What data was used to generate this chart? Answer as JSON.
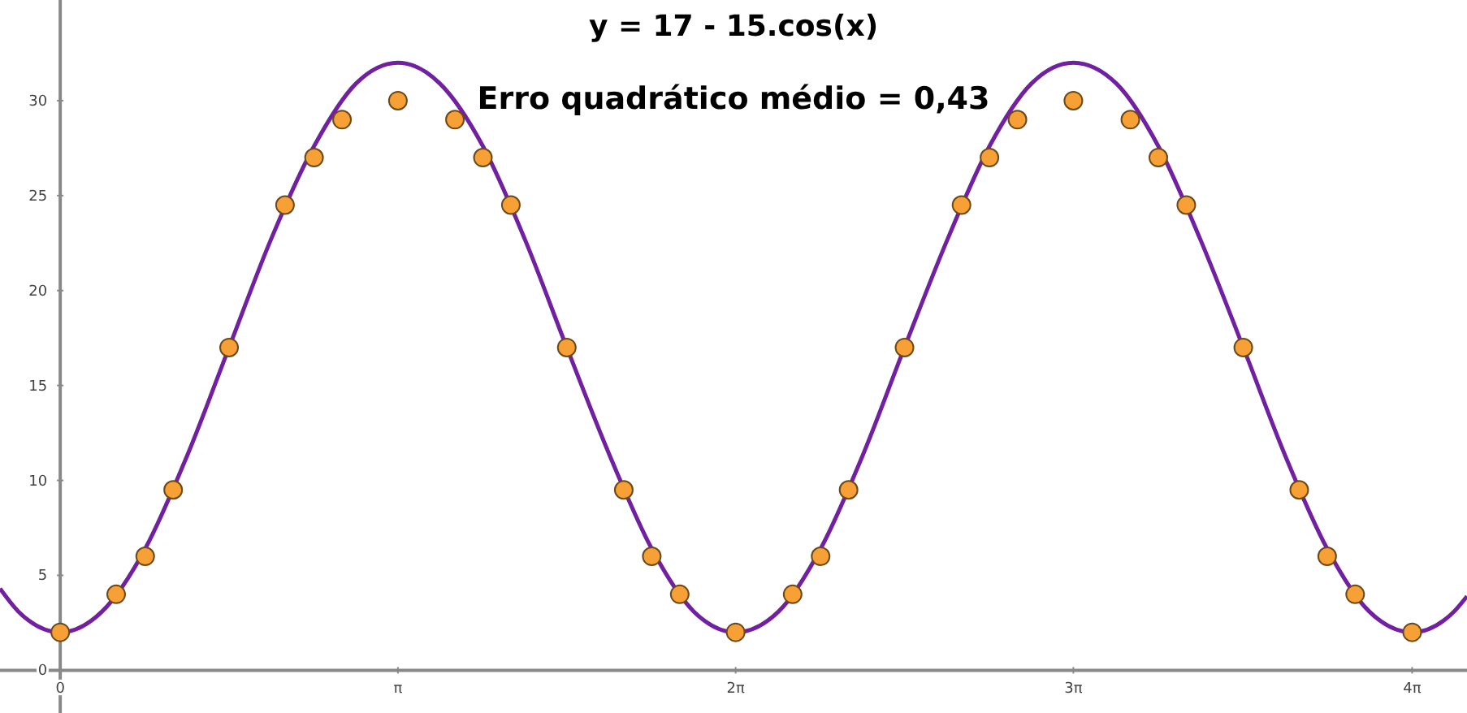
{
  "chart_data": {
    "type": "scatter",
    "title": "y = 17 - 15.cos(x)",
    "subtitle": "Erro quadrático médio = 0,43",
    "xlim": [
      -0.56,
      13.08
    ],
    "ylim": [
      -2.25,
      35.3
    ],
    "xticks": [
      {
        "value": 0,
        "label": "0"
      },
      {
        "value": 3.14,
        "label": "π"
      },
      {
        "value": 6.28,
        "label": "2π"
      },
      {
        "value": 9.42,
        "label": "3π"
      },
      {
        "value": 12.57,
        "label": "4π"
      }
    ],
    "yticks": [
      0,
      5,
      10,
      15,
      20,
      25,
      30
    ],
    "grid": false,
    "marker": "circle",
    "series": [
      {
        "type": "line",
        "marker": "none",
        "color": "#7020a0",
        "line_style": "solid",
        "x": [
          -0.56,
          -0.39,
          0,
          0.39,
          0.79,
          1.18,
          1.57,
          1.96,
          2.36,
          2.75,
          3.14,
          3.53,
          3.93,
          4.32,
          4.71,
          5.11,
          5.5,
          5.89,
          6.28,
          6.68,
          7.07,
          7.46,
          7.85,
          8.25,
          8.64,
          9.03,
          9.42,
          9.82,
          10.21,
          10.6,
          11,
          11.39,
          11.78,
          12.17,
          12.57,
          12.96,
          13.08
        ],
        "values": [
          4.3,
          3.1,
          2,
          3.1,
          6.4,
          11.3,
          17,
          22.7,
          27.6,
          30.9,
          32,
          30.9,
          27.6,
          22.7,
          17,
          11.3,
          6.4,
          3.1,
          2,
          3.1,
          6.4,
          11.3,
          17,
          22.7,
          27.6,
          30.9,
          32,
          30.9,
          27.6,
          22.7,
          17,
          11.3,
          6.4,
          3.1,
          2,
          3.1,
          3.9
        ]
      },
      {
        "color": "#f7a035",
        "x": [
          0,
          0.52,
          0.79,
          1.05,
          1.57,
          2.09,
          2.36,
          2.62,
          3.14,
          3.67,
          3.93,
          4.19,
          4.71,
          5.24,
          5.5,
          5.76,
          6.28,
          6.81,
          7.07,
          7.33,
          7.85,
          8.38,
          8.64,
          8.9,
          9.42,
          9.95,
          10.21,
          10.47,
          11,
          11.52,
          11.78,
          12.04,
          12.57
        ],
        "values": [
          2,
          4,
          6,
          9.5,
          17,
          24.5,
          27,
          29,
          30,
          29,
          27,
          24.5,
          17,
          9.5,
          6,
          4,
          2,
          4,
          6,
          9.5,
          17,
          24.5,
          27,
          29,
          30,
          29,
          27,
          24.5,
          17,
          9.5,
          6,
          4,
          2
        ]
      }
    ]
  }
}
